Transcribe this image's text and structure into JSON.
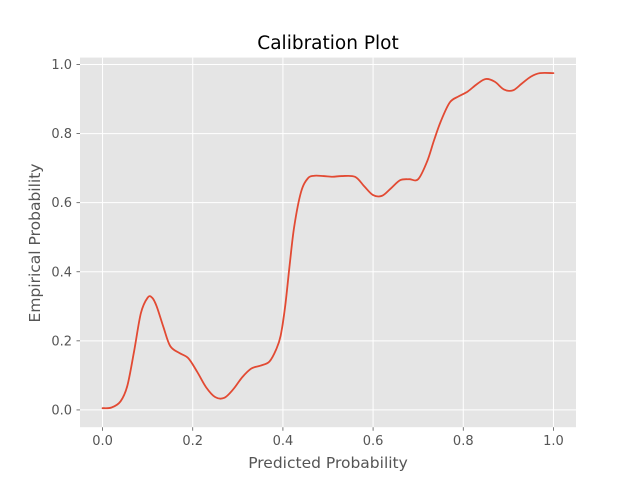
{
  "chart_data": {
    "type": "line",
    "title": "Calibration Plot",
    "xlabel": "Predicted Probability",
    "ylabel": "Empirical Probability",
    "xlim": [
      -0.05,
      1.05
    ],
    "ylim": [
      -0.05,
      1.02
    ],
    "xticks": [
      0.0,
      0.2,
      0.4,
      0.6,
      0.8,
      1.0
    ],
    "yticks": [
      0.0,
      0.2,
      0.4,
      0.6,
      0.8,
      1.0
    ],
    "xtick_labels": [
      "0.0",
      "0.2",
      "0.4",
      "0.6",
      "0.8",
      "1.0"
    ],
    "ytick_labels": [
      "0.0",
      "0.2",
      "0.4",
      "0.6",
      "0.8",
      "1.0"
    ],
    "grid": true,
    "style": {
      "background": "#e5e5e5",
      "grid_color": "#ffffff",
      "line_color": "#e24a33"
    },
    "series": [
      {
        "x": [
          0.0,
          0.02,
          0.04,
          0.055,
          0.07,
          0.085,
          0.1,
          0.11,
          0.12,
          0.135,
          0.15,
          0.17,
          0.19,
          0.21,
          0.23,
          0.25,
          0.27,
          0.29,
          0.31,
          0.33,
          0.35,
          0.37,
          0.385,
          0.395,
          0.405,
          0.415,
          0.425,
          0.44,
          0.455,
          0.47,
          0.49,
          0.51,
          0.53,
          0.56,
          0.58,
          0.6,
          0.62,
          0.64,
          0.66,
          0.68,
          0.7,
          0.72,
          0.735,
          0.75,
          0.77,
          0.79,
          0.81,
          0.83,
          0.85,
          0.87,
          0.89,
          0.91,
          0.93,
          0.95,
          0.97,
          1.0
        ],
        "y": [
          0.005,
          0.007,
          0.025,
          0.07,
          0.17,
          0.28,
          0.325,
          0.325,
          0.3,
          0.24,
          0.185,
          0.165,
          0.15,
          0.11,
          0.065,
          0.037,
          0.035,
          0.06,
          0.095,
          0.12,
          0.128,
          0.14,
          0.175,
          0.215,
          0.3,
          0.42,
          0.53,
          0.63,
          0.67,
          0.678,
          0.677,
          0.675,
          0.677,
          0.675,
          0.648,
          0.622,
          0.62,
          0.642,
          0.665,
          0.668,
          0.668,
          0.72,
          0.78,
          0.835,
          0.89,
          0.908,
          0.922,
          0.943,
          0.958,
          0.95,
          0.928,
          0.925,
          0.945,
          0.965,
          0.975,
          0.975
        ]
      }
    ]
  }
}
